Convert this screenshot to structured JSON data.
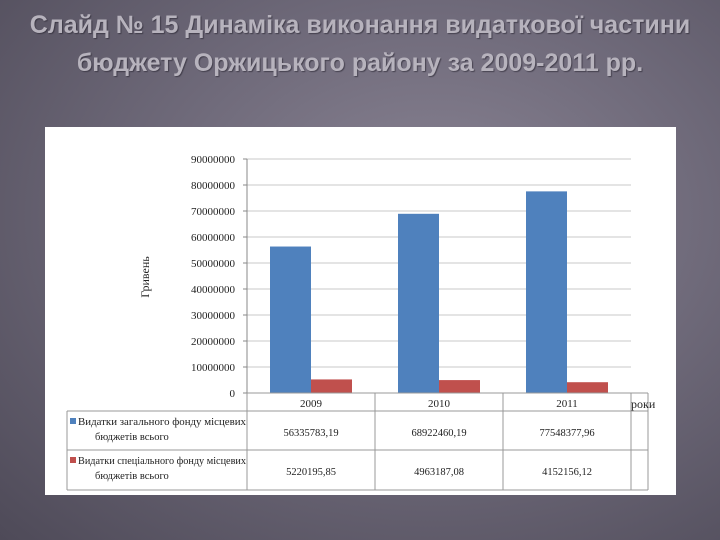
{
  "slide": {
    "title": "Слайд № 15 Динаміка виконання видаткової частини бюджету Оржицького району за 2009-2011 рр."
  },
  "chart_data": {
    "type": "bar",
    "categories": [
      "2009",
      "2010",
      "2011"
    ],
    "series": [
      {
        "name": "Видатки загального фонду місцевих бюджетів всього",
        "values": [
          56335783.19,
          68922460.19,
          77548377.96
        ],
        "labels": [
          "56335783,19",
          "68922460,19",
          "77548377,96"
        ],
        "color": "#4f81bd"
      },
      {
        "name": "Видатки спеціального фонду місцевих бюджетів всього",
        "values": [
          5220195.85,
          4963187.08,
          4152156.12
        ],
        "labels": [
          "5220195,85",
          "4963187,08",
          "4152156,12"
        ],
        "color": "#c0504d"
      }
    ],
    "xlabel": "роки",
    "ylabel": "Гривень",
    "ylim": [
      0,
      90000000
    ],
    "yticks": [
      0,
      10000000,
      20000000,
      30000000,
      40000000,
      50000000,
      60000000,
      70000000,
      80000000,
      90000000
    ],
    "grid": true,
    "data_table": true
  }
}
